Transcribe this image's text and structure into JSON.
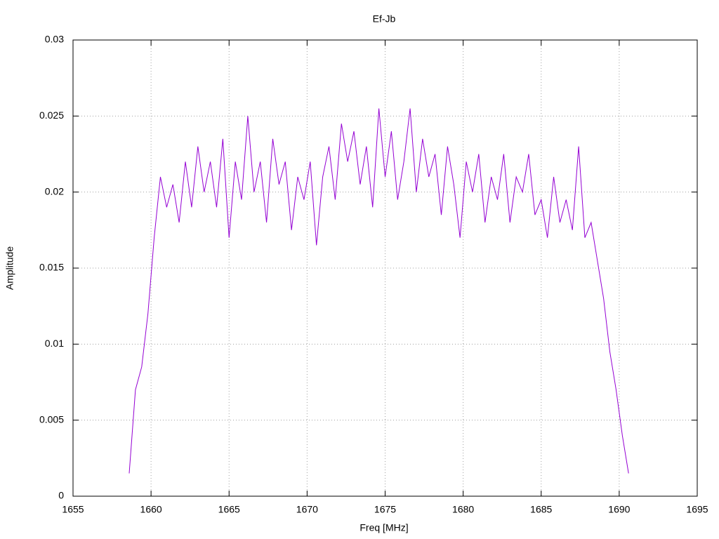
{
  "chart_data": {
    "type": "line",
    "title": "Ef-Jb",
    "x_label": "Freq [MHz]",
    "y_label": "Amplitude",
    "x": [
      1658.6,
      1659,
      1659.4,
      1659.8,
      1660.2,
      1660.6,
      1661,
      1661.4,
      1661.8,
      1662.2,
      1662.6,
      1663,
      1663.4,
      1663.8,
      1664.2,
      1664.6,
      1665,
      1665.4,
      1665.8,
      1666.2,
      1666.6,
      1667,
      1667.4,
      1667.8,
      1668.2,
      1668.6,
      1669,
      1669.4,
      1669.8,
      1670.2,
      1670.6,
      1671,
      1671.4,
      1671.8,
      1672.2,
      1672.6,
      1673,
      1673.4,
      1673.8,
      1674.2,
      1674.6,
      1675,
      1675.4,
      1675.8,
      1676.2,
      1676.6,
      1677,
      1677.4,
      1677.8,
      1678.2,
      1678.6,
      1679,
      1679.4,
      1679.8,
      1680.2,
      1680.6,
      1681,
      1681.4,
      1681.8,
      1682.2,
      1682.6,
      1683,
      1683.4,
      1683.8,
      1684.2,
      1684.6,
      1685,
      1685.4,
      1685.8,
      1686.2,
      1686.6,
      1687,
      1687.4,
      1687.8,
      1688.2,
      1688.6,
      1689,
      1689.4,
      1689.8,
      1690.2,
      1690.6
    ],
    "series": [
      {
        "color": "#9400d3",
        "values": [
          0.0015,
          0.007,
          0.0085,
          0.012,
          0.017,
          0.021,
          0.019,
          0.0205,
          0.018,
          0.022,
          0.019,
          0.023,
          0.02,
          0.022,
          0.019,
          0.0235,
          0.017,
          0.022,
          0.0195,
          0.025,
          0.02,
          0.022,
          0.018,
          0.0235,
          0.0205,
          0.022,
          0.0175,
          0.021,
          0.0195,
          0.022,
          0.0165,
          0.021,
          0.023,
          0.0195,
          0.0245,
          0.022,
          0.024,
          0.0205,
          0.023,
          0.019,
          0.0255,
          0.021,
          0.024,
          0.0195,
          0.022,
          0.0255,
          0.02,
          0.0235,
          0.021,
          0.0225,
          0.0185,
          0.023,
          0.0205,
          0.017,
          0.022,
          0.02,
          0.0225,
          0.018,
          0.021,
          0.0195,
          0.0225,
          0.018,
          0.021,
          0.02,
          0.0225,
          0.0185,
          0.0195,
          0.017,
          0.021,
          0.018,
          0.0195,
          0.0175,
          0.023,
          0.017,
          0.018,
          0.0155,
          0.013,
          0.0095,
          0.007,
          0.004,
          0.0015
        ]
      }
    ],
    "xlim": [
      1655,
      1695
    ],
    "xticks": [
      1655,
      1660,
      1665,
      1670,
      1675,
      1680,
      1685,
      1690,
      1695
    ],
    "ylim": [
      0,
      0.03
    ],
    "yticks": [
      0,
      0.005,
      0.01,
      0.015,
      0.02,
      0.025,
      0.03
    ],
    "grid": true
  }
}
